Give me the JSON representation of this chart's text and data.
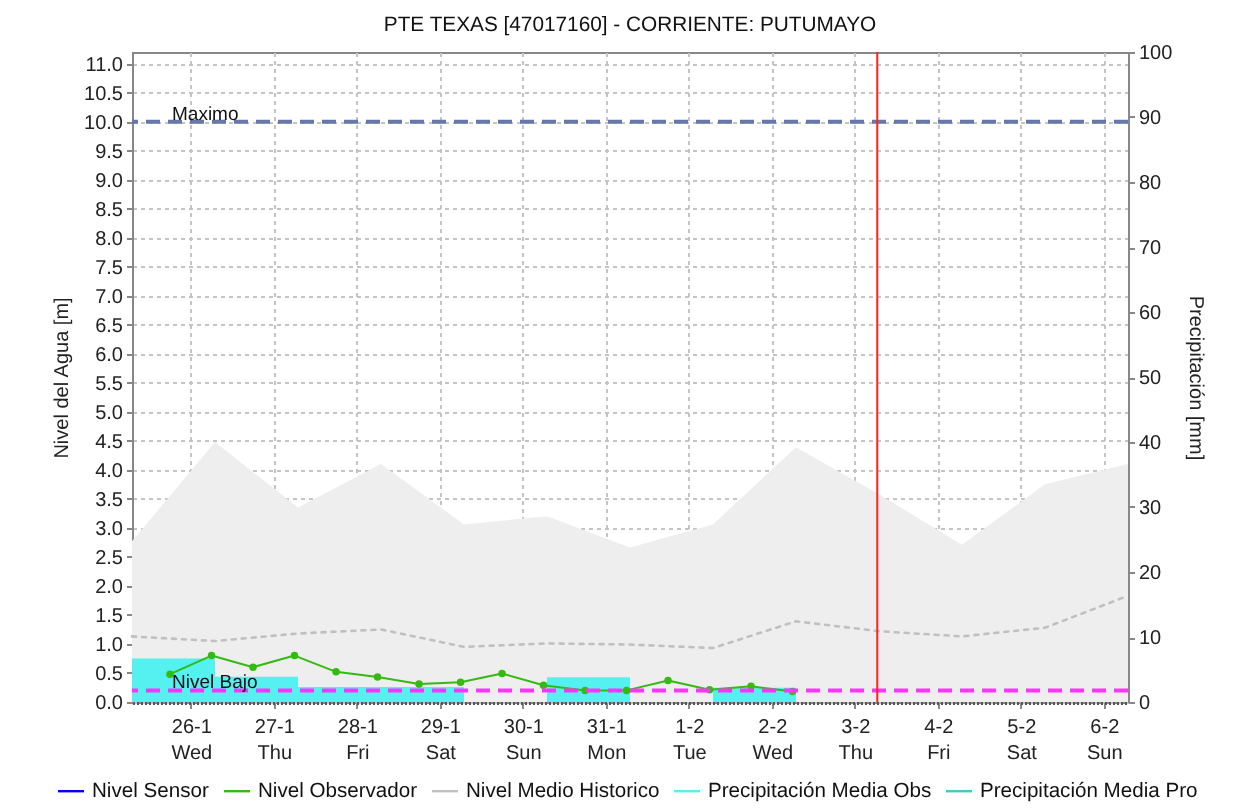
{
  "chart_data": {
    "type": "line",
    "title": "PTE TEXAS [47017160] - CORRIENTE: PUTUMAYO",
    "ylabel": "Nivel del Agua [m]",
    "y2label": "Precipitación [mm]",
    "xlim": [
      "--01-25T07:00",
      "--02-06T07:00"
    ],
    "xticks": [
      {
        "value": "--01-26",
        "label": "26-1\nWed"
      },
      {
        "value": "--01-27",
        "label": "27-1\nThu"
      },
      {
        "value": "--01-28",
        "label": "28-1\nFri"
      },
      {
        "value": "--01-29",
        "label": "29-1\nSat"
      },
      {
        "value": "--01-30",
        "label": "30-1\nSun"
      },
      {
        "value": "--01-31",
        "label": "31-1\nMon"
      },
      {
        "value": "--02-01",
        "label": "1-2\nTue"
      },
      {
        "value": "--02-02",
        "label": "2-2\nWed"
      },
      {
        "value": "--02-03",
        "label": "3-2\nThu"
      },
      {
        "value": "--02-04",
        "label": "4-2\nFri"
      },
      {
        "value": "--02-05",
        "label": "5-2\nSat"
      },
      {
        "value": "--02-06",
        "label": "6-2\nSun"
      }
    ],
    "ylim": [
      0,
      11.2
    ],
    "yticks": [
      {
        "value": 0,
        "label": "0.0"
      },
      {
        "value": 0.5,
        "label": "0.5"
      },
      {
        "value": 1,
        "label": "1.0"
      },
      {
        "value": 1.5,
        "label": "1.5"
      },
      {
        "value": 2,
        "label": "2.0"
      },
      {
        "value": 2.5,
        "label": "2.5"
      },
      {
        "value": 3,
        "label": "3.0"
      },
      {
        "value": 3.5,
        "label": "3.5"
      },
      {
        "value": 4,
        "label": "4.0"
      },
      {
        "value": 4.5,
        "label": "4.5"
      },
      {
        "value": 5,
        "label": "5.0"
      },
      {
        "value": 5.5,
        "label": "5.5"
      },
      {
        "value": 6,
        "label": "6.0"
      },
      {
        "value": 6.5,
        "label": "6.5"
      },
      {
        "value": 7,
        "label": "7.0"
      },
      {
        "value": 7.5,
        "label": "7.5"
      },
      {
        "value": 8,
        "label": "8.0"
      },
      {
        "value": 8.5,
        "label": "8.5"
      },
      {
        "value": 9,
        "label": "9.0"
      },
      {
        "value": 9.5,
        "label": "9.5"
      },
      {
        "value": 10,
        "label": "10.0"
      },
      {
        "value": 10.5,
        "label": "10.5"
      },
      {
        "value": 11,
        "label": "11.0"
      }
    ],
    "y2lim": [
      0,
      100
    ],
    "y2ticks": [
      0,
      10,
      20,
      30,
      40,
      50,
      60,
      70,
      80,
      90,
      100
    ],
    "grid": true,
    "legend": "bottom",
    "series": [
      {
        "name": "Nivel Sensor",
        "color": "#0000ff"
      },
      {
        "name": "Nivel Observador",
        "color": "#33bb11",
        "marker": "circle",
        "x": [
          "--01-25T18:00",
          "--01-26T06:00",
          "--01-26T18:00",
          "--01-27T06:00",
          "--01-27T18:00",
          "--01-28T06:00",
          "--01-28T18:00",
          "--01-29T06:00",
          "--01-29T18:00",
          "--01-30T06:00",
          "--01-30T18:00",
          "--01-31T06:00",
          "--01-31T18:00",
          "--02-01T06:00",
          "--02-01T18:00",
          "--02-02T06:00"
        ],
        "values": [
          0.48,
          0.8,
          0.6,
          0.8,
          0.52,
          0.43,
          0.31,
          0.34,
          0.49,
          0.29,
          0.2,
          0.2,
          0.37,
          0.21,
          0.27,
          0.18
        ]
      },
      {
        "name": "Nivel Medio Historico",
        "color": "#c0c0c0",
        "line_style": "dotted",
        "x": [
          "--01-25T07:00",
          "--01-26T07:00",
          "--01-27T07:00",
          "--01-28T07:00",
          "--01-29T07:00",
          "--01-30T07:00",
          "--01-31T07:00",
          "--02-01T07:00",
          "--02-02T07:00",
          "--02-03T07:00",
          "--02-04T07:00",
          "--02-05T07:00",
          "--02-06T07:00"
        ],
        "values": [
          1.13,
          1.05,
          1.18,
          1.25,
          0.95,
          1.01,
          0.99,
          0.93,
          1.39,
          1.22,
          1.13,
          1.28,
          1.83
        ]
      },
      {
        "name": "Precipitación Media Obs",
        "type": "bar",
        "axis": "y2",
        "color": "#55f0f0",
        "x": [
          "--01-25T19:00",
          "--01-26T19:00",
          "--01-27T19:00",
          "--01-28T19:00",
          "--01-29T19:00",
          "--01-30T19:00",
          "--01-31T19:00",
          "--02-01T19:00"
        ],
        "values": [
          6.7,
          3.9,
          2.3,
          2.3,
          null,
          3.8,
          null,
          2.2
        ]
      },
      {
        "name": "Precipitación Media Pro",
        "type": "bar",
        "axis": "y2",
        "color": "#44c8c8"
      },
      {
        "type": "area",
        "color": "#eeeeee",
        "x": [
          "--01-25T07:00",
          "--01-26T07:00",
          "--01-27T07:00",
          "--01-28T07:00",
          "--01-29T07:00",
          "--01-30T07:00",
          "--01-31T07:00",
          "--02-01T07:00",
          "--02-02T07:00",
          "--02-03T07:00",
          "--02-04T07:00",
          "--02-05T07:00",
          "--02-06T07:00"
        ],
        "values": [
          2.77,
          4.48,
          3.35,
          4.1,
          3.06,
          3.2,
          2.66,
          3.06,
          4.39,
          3.58,
          2.71,
          3.75,
          4.1
        ]
      }
    ],
    "ref_lines": [
      {
        "axis": "y",
        "value": 10,
        "label": "Maximo",
        "color": "#6677aa",
        "line_style": "dashed"
      },
      {
        "axis": "y",
        "value": 0.2,
        "label": "Nivel Bajo",
        "color": "#ff33ff",
        "line_style": "dashed"
      },
      {
        "axis": "x",
        "value": "--02-03T06:30",
        "color": "#ff2222"
      }
    ]
  }
}
